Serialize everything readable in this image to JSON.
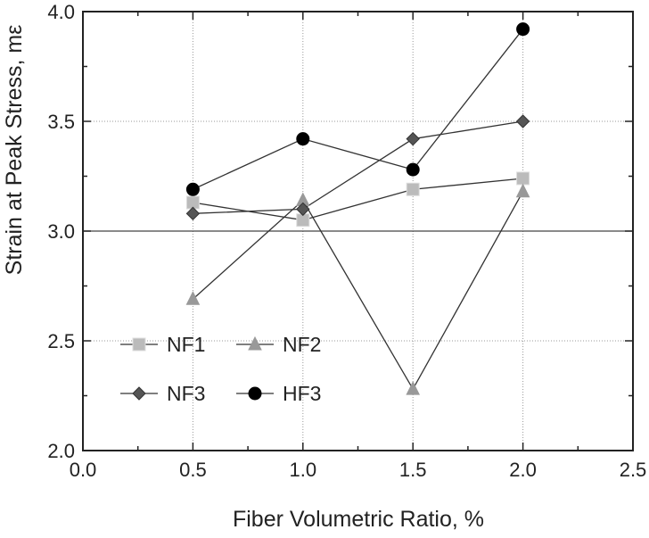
{
  "chart_data": {
    "type": "line",
    "title": "",
    "xlabel": "Fiber Volumetric Ratio, %",
    "ylabel": "Strain at Peak Stress, mε",
    "xlim": [
      0.0,
      2.5
    ],
    "ylim": [
      2.0,
      4.0
    ],
    "x_ticks": [
      0.0,
      0.5,
      1.0,
      1.5,
      2.0,
      2.5
    ],
    "x_tick_labels": [
      "0.0",
      "0.5",
      "1.0",
      "1.5",
      "2.0",
      "2.5"
    ],
    "y_ticks": [
      2.0,
      2.5,
      3.0,
      3.5,
      4.0
    ],
    "y_tick_labels": [
      "2.0",
      "2.5",
      "3.0",
      "3.5",
      "4.0"
    ],
    "grid": true,
    "legend_position": "lower-left",
    "series": [
      {
        "name": "NF1",
        "marker": "square",
        "color": "#bbbbbb",
        "x": [
          0.5,
          1.0,
          1.5,
          2.0
        ],
        "y": [
          3.13,
          3.05,
          3.19,
          3.24
        ]
      },
      {
        "name": "NF2",
        "marker": "triangle",
        "color": "#999999",
        "x": [
          0.5,
          1.0,
          1.5,
          2.0
        ],
        "y": [
          2.69,
          3.14,
          2.28,
          3.18
        ]
      },
      {
        "name": "NF3",
        "marker": "diamond",
        "color": "#555555",
        "x": [
          0.5,
          1.0,
          1.5,
          2.0
        ],
        "y": [
          3.08,
          3.1,
          3.42,
          3.5
        ]
      },
      {
        "name": "HF3",
        "marker": "circle",
        "color": "#000000",
        "x": [
          0.5,
          1.0,
          1.5,
          2.0
        ],
        "y": [
          3.19,
          3.42,
          3.28,
          3.92
        ]
      }
    ]
  }
}
